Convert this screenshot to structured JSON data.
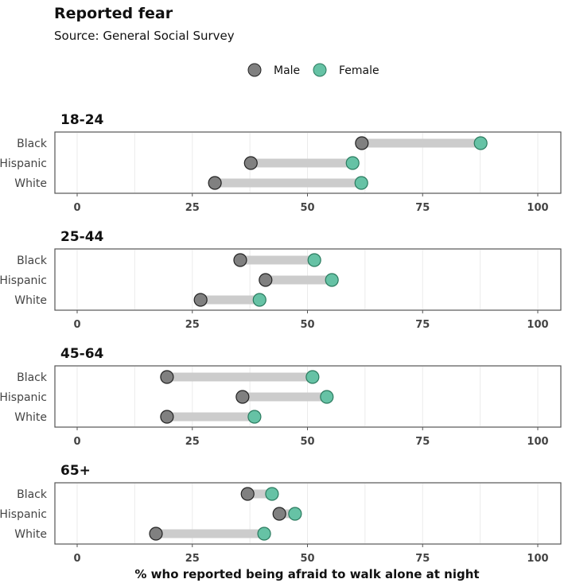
{
  "chart_data": {
    "type": "dumbbell",
    "title": "Reported fear",
    "subtitle": "Source: General Social Survey",
    "xlabel": "% who reported being afraid to walk alone at night",
    "xlim": [
      0,
      100
    ],
    "xticks": [
      0,
      25,
      50,
      75,
      100
    ],
    "grid": true,
    "legend": {
      "placement": "top",
      "entries": [
        "Male",
        "Female"
      ]
    },
    "colors": {
      "Male": "#808080",
      "Female": "#66c2a5"
    },
    "categories": [
      "Black",
      "Hispanic",
      "White"
    ],
    "panels": [
      {
        "label": "18-24",
        "rows": [
          {
            "group": "Black",
            "male": 61.8,
            "female": 87.6
          },
          {
            "group": "Hispanic",
            "male": 37.7,
            "female": 59.8
          },
          {
            "group": "White",
            "male": 29.9,
            "female": 61.7
          }
        ]
      },
      {
        "label": "25-44",
        "rows": [
          {
            "group": "Black",
            "male": 35.4,
            "female": 51.5
          },
          {
            "group": "Hispanic",
            "male": 40.9,
            "female": 55.3
          },
          {
            "group": "White",
            "male": 26.8,
            "female": 39.6
          }
        ]
      },
      {
        "label": "45-64",
        "rows": [
          {
            "group": "Black",
            "male": 19.5,
            "female": 51.1
          },
          {
            "group": "Hispanic",
            "male": 35.9,
            "female": 54.2
          },
          {
            "group": "White",
            "male": 19.5,
            "female": 38.5
          }
        ]
      },
      {
        "label": "65+",
        "rows": [
          {
            "group": "Black",
            "male": 37.0,
            "female": 42.3
          },
          {
            "group": "Hispanic",
            "male": 43.9,
            "female": 47.3
          },
          {
            "group": "White",
            "male": 17.1,
            "female": 40.6
          }
        ]
      }
    ]
  }
}
